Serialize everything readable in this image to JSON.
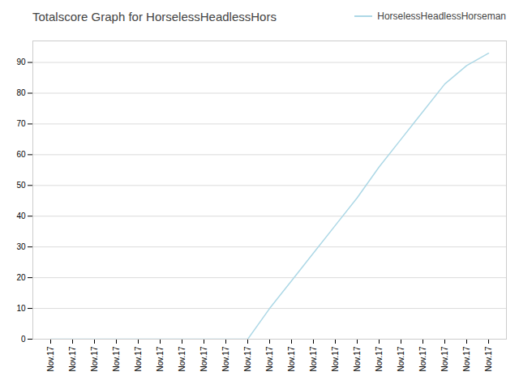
{
  "chart_data": {
    "type": "line",
    "title": "Totalscore Graph for HorselessHeadlessHors",
    "categories": [
      "Nov.17",
      "Nov.17",
      "Nov.17",
      "Nov.17",
      "Nov.17",
      "Nov.17",
      "Nov.17",
      "Nov.17",
      "Nov.17",
      "Nov.17",
      "Nov.17",
      "Nov.17",
      "Nov.17",
      "Nov.17",
      "Nov.17",
      "Nov.17",
      "Nov.17",
      "Nov.17",
      "Nov.17",
      "Nov.17",
      "Nov.17"
    ],
    "series": [
      {
        "name": "HorselessHeadlessHorseman",
        "color": "#add8e6",
        "values": [
          0,
          0,
          0,
          0,
          0,
          0,
          0,
          0,
          0,
          0,
          10,
          19,
          28,
          37,
          46,
          56,
          65,
          74,
          83,
          89,
          93
        ]
      }
    ],
    "ylim": [
      0,
      97
    ],
    "yticks": [
      0,
      10,
      20,
      30,
      40,
      50,
      60,
      70,
      80,
      90
    ],
    "grid": true,
    "legend": "upper right"
  }
}
